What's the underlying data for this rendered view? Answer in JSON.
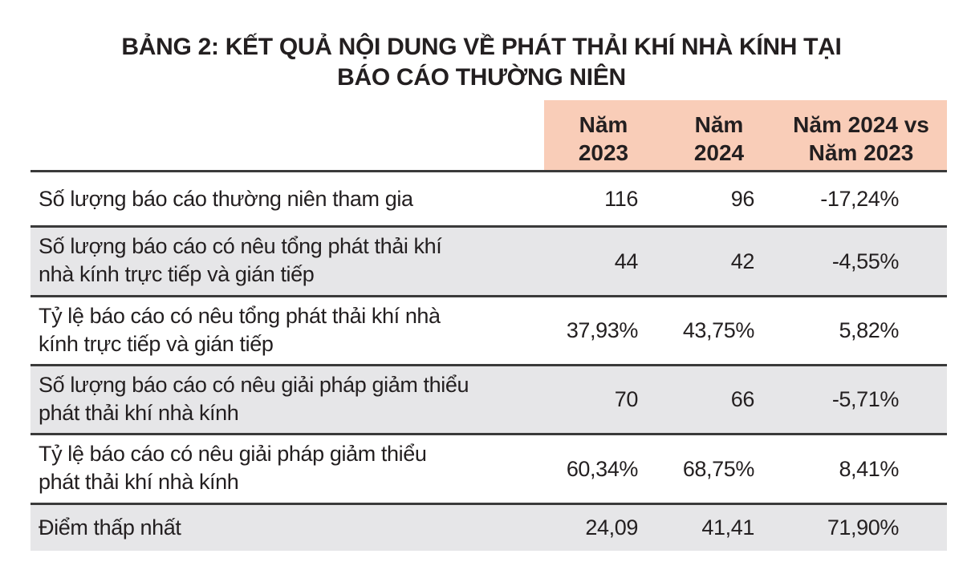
{
  "title": {
    "line1": "BẢNG 2: KẾT QUẢ NỘI DUNG VỀ PHÁT THẢI KHÍ NHÀ KÍNH TẠI",
    "line2": "BÁO CÁO THƯỜNG NIÊN"
  },
  "header": {
    "col1": {
      "line1": "Năm",
      "line2": "2023"
    },
    "col2": {
      "line1": "Năm",
      "line2": "2024"
    },
    "col3": {
      "line1": "Năm 2024 vs",
      "line2": "Năm 2023"
    }
  },
  "colors": {
    "header_bg": "#f9cdb8",
    "alt_row_bg": "#e6e6e8"
  },
  "rows": [
    {
      "label1": "Số lượng báo cáo thường niên tham gia",
      "label2": "",
      "y2023": "116",
      "y2024": "96",
      "change": "-17,24%"
    },
    {
      "label1": "Số lượng báo cáo có nêu tổng phát thải khí",
      "label2": "nhà kính trực tiếp và gián tiếp",
      "y2023": "44",
      "y2024": "42",
      "change": "-4,55%"
    },
    {
      "label1": "Tỷ lệ báo cáo có nêu tổng phát thải khí nhà",
      "label2": "kính trực tiếp và gián tiếp",
      "y2023": "37,93%",
      "y2024": "43,75%",
      "change": "5,82%"
    },
    {
      "label1": "Số lượng báo cáo có nêu giải pháp giảm thiểu",
      "label2": "phát thải khí nhà kính",
      "y2023": "70",
      "y2024": "66",
      "change": "-5,71%"
    },
    {
      "label1": "Tỷ lệ báo cáo có nêu giải pháp giảm thiểu",
      "label2": "phát thải khí nhà kính",
      "y2023": "60,34%",
      "y2024": "68,75%",
      "change": "8,41%"
    },
    {
      "label1": "Điểm thấp nhất",
      "label2": "",
      "y2023": "24,09",
      "y2024": "41,41",
      "change": "71,90%"
    }
  ]
}
